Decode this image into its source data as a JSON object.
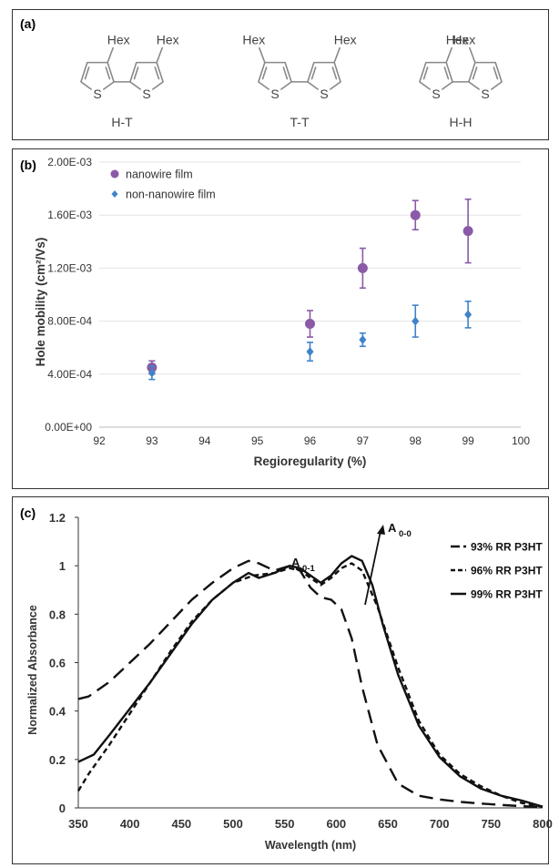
{
  "panel_a": {
    "label": "(a)",
    "structures": [
      {
        "name": "H-T",
        "substituent": "Hex",
        "heteroatom": "S"
      },
      {
        "name": "T-T",
        "substituent": "Hex",
        "heteroatom": "S"
      },
      {
        "name": "H-H",
        "substituent": "Hex",
        "heteroatom": "S"
      }
    ]
  },
  "chart_data": [
    {
      "panel": "(b)",
      "type": "scatter",
      "xlabel": "Regioregularity (%)",
      "ylabel": "Hole mobility (cm²/Vs)",
      "xlim": [
        92,
        100
      ],
      "ylim": [
        0,
        0.002
      ],
      "xticks": [
        "92",
        "93",
        "94",
        "95",
        "96",
        "97",
        "98",
        "99",
        "100"
      ],
      "yticks": [
        "0.00E+00",
        "4.00E-04",
        "8.00E-04",
        "1.20E-03",
        "1.60E-03",
        "2.00E-03"
      ],
      "grid": "horizontal",
      "legend": "top-left",
      "series": [
        {
          "name": "nanowire film",
          "color": "#8a5aa8",
          "marker": "circle",
          "x": [
            93,
            96,
            97,
            98,
            99
          ],
          "y": [
            0.00045,
            0.00078,
            0.0012,
            0.0016,
            0.00148
          ],
          "err": [
            5e-05,
            0.0001,
            0.00015,
            0.00011,
            0.00024
          ]
        },
        {
          "name": "non-nanowire film",
          "color": "#3f84c8",
          "marker": "diamond",
          "x": [
            93,
            96,
            97,
            98,
            99
          ],
          "y": [
            0.00041,
            0.00057,
            0.00066,
            0.0008,
            0.00085
          ],
          "err": [
            5e-05,
            7e-05,
            5e-05,
            0.00012,
            0.0001
          ]
        }
      ]
    },
    {
      "panel": "(c)",
      "type": "line",
      "xlabel": "Wavelength (nm)",
      "ylabel": "Normalized Absorbance",
      "xlim": [
        350,
        800
      ],
      "ylim": [
        0,
        1.2
      ],
      "xticks": [
        "350",
        "400",
        "450",
        "500",
        "550",
        "600",
        "650",
        "700",
        "750",
        "800"
      ],
      "yticks": [
        "0",
        "0.2",
        "0.4",
        "0.6",
        "0.8",
        "1",
        "1.2"
      ],
      "grid": "none",
      "legend": "right",
      "annotations": {
        "a01": "A",
        "a01_sub": "0-1",
        "a00": "A",
        "a00_sub": "0-0"
      },
      "series": [
        {
          "name": "93% RR P3HT",
          "dash": "long",
          "x": [
            350,
            360,
            380,
            400,
            420,
            440,
            460,
            480,
            500,
            515,
            525,
            540,
            555,
            565,
            575,
            585,
            595,
            605,
            615,
            625,
            640,
            660,
            680,
            700,
            720,
            740,
            760,
            780,
            800
          ],
          "y": [
            0.45,
            0.46,
            0.52,
            0.6,
            0.68,
            0.77,
            0.86,
            0.93,
            0.99,
            1.02,
            1.01,
            0.98,
            1.0,
            0.98,
            0.91,
            0.87,
            0.86,
            0.82,
            0.7,
            0.5,
            0.26,
            0.1,
            0.05,
            0.035,
            0.025,
            0.018,
            0.012,
            0.007,
            0.003
          ]
        },
        {
          "name": "96% RR P3HT",
          "dash": "short",
          "x": [
            350,
            360,
            380,
            400,
            420,
            440,
            460,
            480,
            500,
            520,
            540,
            555,
            565,
            575,
            585,
            595,
            605,
            615,
            625,
            640,
            660,
            680,
            700,
            720,
            740,
            760,
            780,
            800
          ],
          "y": [
            0.07,
            0.14,
            0.26,
            0.39,
            0.52,
            0.65,
            0.77,
            0.86,
            0.93,
            0.96,
            0.97,
            0.99,
            0.98,
            0.95,
            0.92,
            0.95,
            0.99,
            1.01,
            0.98,
            0.83,
            0.58,
            0.36,
            0.22,
            0.14,
            0.09,
            0.05,
            0.02,
            0.005
          ]
        },
        {
          "name": "99% RR P3HT",
          "dash": "solid",
          "x": [
            350,
            355,
            365,
            380,
            400,
            420,
            440,
            460,
            480,
            500,
            515,
            525,
            540,
            555,
            565,
            575,
            585,
            595,
            605,
            615,
            625,
            635,
            645,
            660,
            680,
            700,
            720,
            740,
            760,
            780,
            800
          ],
          "y": [
            0.19,
            0.2,
            0.22,
            0.3,
            0.41,
            0.52,
            0.64,
            0.76,
            0.86,
            0.93,
            0.97,
            0.95,
            0.97,
            1.0,
            0.99,
            0.96,
            0.93,
            0.96,
            1.01,
            1.04,
            1.02,
            0.92,
            0.76,
            0.55,
            0.34,
            0.21,
            0.13,
            0.08,
            0.05,
            0.03,
            0.005
          ]
        }
      ]
    }
  ]
}
